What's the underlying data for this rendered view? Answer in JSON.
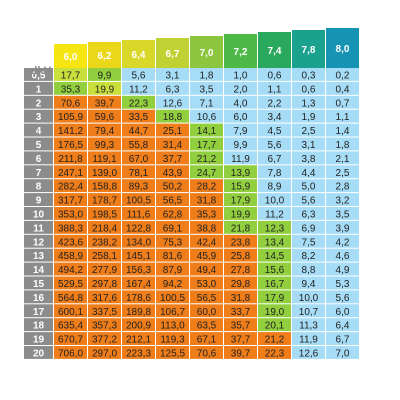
{
  "chart_data": {
    "type": "heatmap",
    "row_header": "dkH",
    "columns": [
      "6,0",
      "6,2",
      "6,4",
      "6,7",
      "7,0",
      "7,2",
      "7,4",
      "7,8",
      "8,0"
    ],
    "rows": [
      "0,5",
      "1",
      "2",
      "3",
      "4",
      "5",
      "6",
      "7",
      "8",
      "9",
      "10",
      "11",
      "12",
      "13",
      "14",
      "15",
      "16",
      "17",
      "18",
      "19",
      "20"
    ],
    "values": [
      [
        "17,7",
        "9,9",
        "5,6",
        "3,1",
        "1,8",
        "1,0",
        "0,6",
        "0,3",
        "0,2"
      ],
      [
        "35,3",
        "19,9",
        "11,2",
        "6,3",
        "3,5",
        "2,0",
        "1,1",
        "0,6",
        "0,4"
      ],
      [
        "70,6",
        "39,7",
        "22,3",
        "12,6",
        "7,1",
        "4,0",
        "2,2",
        "1,3",
        "0,7"
      ],
      [
        "105,9",
        "59,6",
        "33,5",
        "18,8",
        "10,6",
        "6,0",
        "3,4",
        "1,9",
        "1,1"
      ],
      [
        "141,2",
        "79,4",
        "44,7",
        "25,1",
        "14,1",
        "7,9",
        "4,5",
        "2,5",
        "1,4"
      ],
      [
        "176,5",
        "99,3",
        "55,8",
        "31,4",
        "17,7",
        "9,9",
        "5,6",
        "3,1",
        "1,8"
      ],
      [
        "211,8",
        "119,1",
        "67,0",
        "37,7",
        "21,2",
        "11,9",
        "6,7",
        "3,8",
        "2,1"
      ],
      [
        "247,1",
        "139,0",
        "78,1",
        "43,9",
        "24,7",
        "13,9",
        "7,8",
        "4,4",
        "2,5"
      ],
      [
        "282,4",
        "158,8",
        "89,3",
        "50,2",
        "28,2",
        "15,9",
        "8,9",
        "5,0",
        "2,8"
      ],
      [
        "317,7",
        "178,7",
        "100,5",
        "56,5",
        "31,8",
        "17,9",
        "10,0",
        "5,6",
        "3,2"
      ],
      [
        "353,0",
        "198,5",
        "111,6",
        "62,8",
        "35,3",
        "19,9",
        "11,2",
        "6,3",
        "3,5"
      ],
      [
        "388,3",
        "218,4",
        "122,8",
        "69,1",
        "38,8",
        "21,8",
        "12,3",
        "6,9",
        "3,9"
      ],
      [
        "423,6",
        "238,2",
        "134,0",
        "75,3",
        "42,4",
        "23,8",
        "13,4",
        "7,5",
        "4,2"
      ],
      [
        "458,9",
        "258,1",
        "145,1",
        "81,6",
        "45,9",
        "25,8",
        "14,5",
        "8,2",
        "4,6"
      ],
      [
        "494,2",
        "277,9",
        "156,3",
        "87,9",
        "49,4",
        "27,8",
        "15,6",
        "8,8",
        "4,9"
      ],
      [
        "529,5",
        "297,8",
        "167,4",
        "94,2",
        "53,0",
        "29,8",
        "16,7",
        "9,4",
        "5,3"
      ],
      [
        "564,8",
        "317,6",
        "178,6",
        "100,5",
        "56,5",
        "31,8",
        "17,9",
        "10,0",
        "5,6"
      ],
      [
        "600,1",
        "337,5",
        "189,8",
        "106,7",
        "60,0",
        "33,7",
        "19,0",
        "10,7",
        "6,0"
      ],
      [
        "635,4",
        "357,3",
        "200,9",
        "113,0",
        "63,5",
        "35,7",
        "20,1",
        "11,3",
        "6,4"
      ],
      [
        "670,7",
        "377,2",
        "212,1",
        "119,3",
        "67,1",
        "37,7",
        "21,2",
        "11,9",
        "6,7"
      ],
      [
        "706,0",
        "297,0",
        "223,3",
        "125,5",
        "70,6",
        "39,7",
        "22,3",
        "12,6",
        "7,0"
      ]
    ],
    "cell_colors": [
      [
        "#c8df3c",
        "#92cf3f",
        "#a6dcf6",
        "#a6dcf6",
        "#a6dcf6",
        "#a6dcf6",
        "#a6dcf6",
        "#a6dcf6",
        "#a6dcf6"
      ],
      [
        "#92cf3f",
        "#c8df3c",
        "#a6dcf6",
        "#a6dcf6",
        "#a6dcf6",
        "#a6dcf6",
        "#a6dcf6",
        "#a6dcf6",
        "#a6dcf6"
      ],
      [
        "#ef7d1a",
        "#ef7d1a",
        "#92cf3f",
        "#a6dcf6",
        "#a6dcf6",
        "#a6dcf6",
        "#a6dcf6",
        "#a6dcf6",
        "#a6dcf6"
      ],
      [
        "#ef7d1a",
        "#ef7d1a",
        "#ef7d1a",
        "#92cf3f",
        "#a6dcf6",
        "#a6dcf6",
        "#a6dcf6",
        "#a6dcf6",
        "#a6dcf6"
      ],
      [
        "#ef7d1a",
        "#ef7d1a",
        "#ef7d1a",
        "#ef7d1a",
        "#92cf3f",
        "#a6dcf6",
        "#a6dcf6",
        "#a6dcf6",
        "#a6dcf6"
      ],
      [
        "#ef7d1a",
        "#ef7d1a",
        "#ef7d1a",
        "#ef7d1a",
        "#92cf3f",
        "#a6dcf6",
        "#a6dcf6",
        "#a6dcf6",
        "#a6dcf6"
      ],
      [
        "#ef7d1a",
        "#ef7d1a",
        "#ef7d1a",
        "#ef7d1a",
        "#92cf3f",
        "#a6dcf6",
        "#a6dcf6",
        "#a6dcf6",
        "#a6dcf6"
      ],
      [
        "#ef7d1a",
        "#ef7d1a",
        "#ef7d1a",
        "#ef7d1a",
        "#92cf3f",
        "#92cf3f",
        "#a6dcf6",
        "#a6dcf6",
        "#a6dcf6"
      ],
      [
        "#ef7d1a",
        "#ef7d1a",
        "#ef7d1a",
        "#ef7d1a",
        "#ef7d1a",
        "#92cf3f",
        "#a6dcf6",
        "#a6dcf6",
        "#a6dcf6"
      ],
      [
        "#ef7d1a",
        "#ef7d1a",
        "#ef7d1a",
        "#ef7d1a",
        "#ef7d1a",
        "#92cf3f",
        "#a6dcf6",
        "#a6dcf6",
        "#a6dcf6"
      ],
      [
        "#ef7d1a",
        "#ef7d1a",
        "#ef7d1a",
        "#ef7d1a",
        "#ef7d1a",
        "#92cf3f",
        "#a6dcf6",
        "#a6dcf6",
        "#a6dcf6"
      ],
      [
        "#ef7d1a",
        "#ef7d1a",
        "#ef7d1a",
        "#ef7d1a",
        "#ef7d1a",
        "#92cf3f",
        "#92cf3f",
        "#a6dcf6",
        "#a6dcf6"
      ],
      [
        "#ef7d1a",
        "#ef7d1a",
        "#ef7d1a",
        "#ef7d1a",
        "#ef7d1a",
        "#ef7d1a",
        "#92cf3f",
        "#a6dcf6",
        "#a6dcf6"
      ],
      [
        "#ef7d1a",
        "#ef7d1a",
        "#ef7d1a",
        "#ef7d1a",
        "#ef7d1a",
        "#ef7d1a",
        "#92cf3f",
        "#a6dcf6",
        "#a6dcf6"
      ],
      [
        "#ef7d1a",
        "#ef7d1a",
        "#ef7d1a",
        "#ef7d1a",
        "#ef7d1a",
        "#ef7d1a",
        "#92cf3f",
        "#a6dcf6",
        "#a6dcf6"
      ],
      [
        "#ef7d1a",
        "#ef7d1a",
        "#ef7d1a",
        "#ef7d1a",
        "#ef7d1a",
        "#ef7d1a",
        "#92cf3f",
        "#a6dcf6",
        "#a6dcf6"
      ],
      [
        "#ef7d1a",
        "#ef7d1a",
        "#ef7d1a",
        "#ef7d1a",
        "#ef7d1a",
        "#ef7d1a",
        "#92cf3f",
        "#a6dcf6",
        "#a6dcf6"
      ],
      [
        "#ef7d1a",
        "#ef7d1a",
        "#ef7d1a",
        "#ef7d1a",
        "#ef7d1a",
        "#ef7d1a",
        "#92cf3f",
        "#a6dcf6",
        "#a6dcf6"
      ],
      [
        "#ef7d1a",
        "#ef7d1a",
        "#ef7d1a",
        "#ef7d1a",
        "#ef7d1a",
        "#ef7d1a",
        "#92cf3f",
        "#a6dcf6",
        "#a6dcf6"
      ],
      [
        "#ef7d1a",
        "#ef7d1a",
        "#ef7d1a",
        "#ef7d1a",
        "#ef7d1a",
        "#ef7d1a",
        "#ef7d1a",
        "#a6dcf6",
        "#a6dcf6"
      ],
      [
        "#ef7d1a",
        "#ef7d1a",
        "#ef7d1a",
        "#ef7d1a",
        "#ef7d1a",
        "#ef7d1a",
        "#ef7d1a",
        "#a6dcf6",
        "#a6dcf6"
      ]
    ],
    "column_colors": [
      "#f5e510",
      "#ead71a",
      "#d9d72a",
      "#bfd133",
      "#8cc63f",
      "#4fb948",
      "#2aa85e",
      "#1aa28e",
      "#1794b4"
    ],
    "row_header_color": "#8c8c8c",
    "grid": true
  }
}
